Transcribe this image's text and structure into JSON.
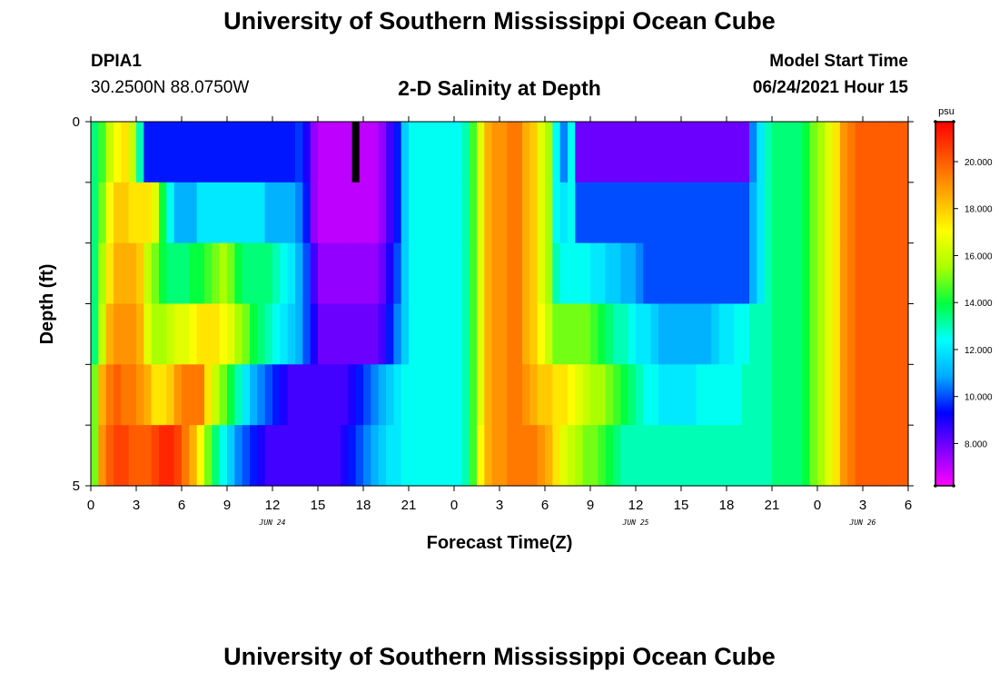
{
  "header": {
    "title": "University of Southern Mississippi Ocean Cube",
    "station_id": "DPIA1",
    "station_coords": "30.2500N  88.0750W",
    "subtitle": "2-D Salinity at Depth",
    "model_start_label": "Model Start Time",
    "model_start_value": "06/24/2021 Hour 15"
  },
  "footer": {
    "title": "University of Southern Mississippi Ocean Cube"
  },
  "chart_data": {
    "type": "heatmap",
    "title": "2-D Salinity at Depth",
    "xlabel": "Forecast Time(Z)",
    "ylabel": "Depth (ft)",
    "x_hours": [
      0,
      0.5,
      1,
      1.5,
      2,
      2.5,
      3,
      3.5,
      4,
      4.5,
      5,
      5.5,
      6,
      6.5,
      7,
      7.5,
      8,
      8.5,
      9,
      9.5,
      10,
      10.5,
      11,
      11.5,
      12,
      12.5,
      13,
      13.5,
      14,
      14.5,
      15,
      15.5,
      16,
      16.5,
      17,
      17.5,
      18,
      18.5,
      19,
      19.5,
      20,
      20.5,
      21,
      21.5,
      22,
      22.5,
      23,
      23.5,
      24,
      24.5,
      25,
      25.5,
      26,
      26.5,
      27,
      27.5,
      28,
      28.5,
      29,
      29.5,
      30,
      30.5,
      31,
      31.5,
      32,
      32.5,
      33,
      33.5,
      34,
      34.5,
      35,
      35.5,
      36,
      36.5,
      37,
      37.5,
      38,
      38.5,
      39,
      39.5,
      40,
      40.5,
      41,
      41.5,
      42,
      42.5,
      43,
      43.5,
      44,
      44.5,
      45,
      45.5,
      46,
      46.5,
      47,
      47.5,
      48,
      48.5,
      49,
      49.5,
      50,
      50.5,
      51,
      51.5,
      52,
      52.5,
      53,
      53.5,
      54
    ],
    "depth_layers_ft": [
      0,
      1,
      2,
      3,
      4,
      5
    ],
    "salinity_psu": [
      [
        13.5,
        14.5,
        16.0,
        17.0,
        17.5,
        16.0,
        13.0,
        9.5,
        9.5,
        9.5,
        9.5,
        9.5,
        9.5,
        9.5,
        9.5,
        9.5,
        9.5,
        9.5,
        9.5,
        9.5,
        9.5,
        9.5,
        9.5,
        9.5,
        9.5,
        9.5,
        9.5,
        9.8,
        9.0,
        7.5,
        7.0,
        7.0,
        7.0,
        7.0,
        7.0,
        7.0,
        7.0,
        7.0,
        7.5,
        8.5,
        9.5,
        11.5,
        12.5,
        12.5,
        12.5,
        12.5,
        12.5,
        12.5,
        12.5,
        13.0,
        14.5,
        16.5,
        18.5,
        19.0,
        19.0,
        19.5,
        19.5,
        18.5,
        18.0,
        16.5,
        15.5,
        12.5,
        10.5,
        12.5,
        8.0,
        8.0,
        8.0,
        8.0,
        8.0,
        8.0,
        8.0,
        8.0,
        8.0,
        8.0,
        8.0,
        8.0,
        8.0,
        8.0,
        8.0,
        8.0,
        8.0,
        8.0,
        8.0,
        8.0,
        8.0,
        8.0,
        8.0,
        10.5,
        12.0,
        13.0,
        13.5,
        13.5,
        13.5,
        13.5,
        14.0,
        15.0,
        15.5,
        16.5,
        17.5,
        19.0,
        19.5,
        20.0,
        20.0,
        20.0,
        20.0,
        20.0,
        20.0,
        20.0
      ],
      [
        13.5,
        15.0,
        17.0,
        18.0,
        18.0,
        17.5,
        17.5,
        17.5,
        16.5,
        14.0,
        12.5,
        11.0,
        11.0,
        11.0,
        12.0,
        12.0,
        12.0,
        12.0,
        12.0,
        12.0,
        12.0,
        12.0,
        12.0,
        11.0,
        11.0,
        11.0,
        11.0,
        10.5,
        9.5,
        7.5,
        7.0,
        7.0,
        7.0,
        7.0,
        7.0,
        7.0,
        7.0,
        7.0,
        7.5,
        8.5,
        9.5,
        11.5,
        12.5,
        12.5,
        12.5,
        12.5,
        12.5,
        12.5,
        12.5,
        13.0,
        14.5,
        16.5,
        18.5,
        19.0,
        19.0,
        19.5,
        19.5,
        18.5,
        18.0,
        16.5,
        15.5,
        12.5,
        12.0,
        12.5,
        10.0,
        10.0,
        10.0,
        10.0,
        10.0,
        10.0,
        10.0,
        10.0,
        10.0,
        10.0,
        10.0,
        10.0,
        10.0,
        10.0,
        10.0,
        10.0,
        10.0,
        10.0,
        10.0,
        10.0,
        10.0,
        10.0,
        10.0,
        11.0,
        12.0,
        13.0,
        13.5,
        13.5,
        13.5,
        13.5,
        14.0,
        15.0,
        15.5,
        16.5,
        17.5,
        19.0,
        19.5,
        20.0,
        20.0,
        20.0,
        20.0,
        20.0,
        20.0,
        20.0
      ],
      [
        13.5,
        15.5,
        17.5,
        18.5,
        18.5,
        18.5,
        18.0,
        16.0,
        15.0,
        14.0,
        13.5,
        13.5,
        13.5,
        14.0,
        14.0,
        14.5,
        15.0,
        15.5,
        15.0,
        14.0,
        13.5,
        13.5,
        13.5,
        13.5,
        13.0,
        12.5,
        12.0,
        11.0,
        10.0,
        8.5,
        7.5,
        7.5,
        7.5,
        7.5,
        7.5,
        7.5,
        7.5,
        7.5,
        8.0,
        9.0,
        10.0,
        11.5,
        12.5,
        12.5,
        12.5,
        12.5,
        12.5,
        12.5,
        12.5,
        13.0,
        14.5,
        16.5,
        18.5,
        19.0,
        19.0,
        19.5,
        19.5,
        18.5,
        18.0,
        16.5,
        15.5,
        13.0,
        12.5,
        12.5,
        12.5,
        12.5,
        12.0,
        12.0,
        11.5,
        11.5,
        11.0,
        11.0,
        10.5,
        10.0,
        10.0,
        10.0,
        10.0,
        10.0,
        10.0,
        10.0,
        10.0,
        10.0,
        10.0,
        10.0,
        10.0,
        10.0,
        10.0,
        11.0,
        12.0,
        13.0,
        13.5,
        13.5,
        13.5,
        13.5,
        14.0,
        15.0,
        15.5,
        16.5,
        17.5,
        19.0,
        19.5,
        20.0,
        20.0,
        20.0,
        20.0,
        20.0,
        20.0,
        20.0
      ],
      [
        13.5,
        16.0,
        18.5,
        19.0,
        19.0,
        19.0,
        18.5,
        16.5,
        15.5,
        15.5,
        16.0,
        16.5,
        16.5,
        17.0,
        17.5,
        17.5,
        17.5,
        17.0,
        16.5,
        15.5,
        15.0,
        14.0,
        13.5,
        13.0,
        12.5,
        12.0,
        11.5,
        11.0,
        10.0,
        9.0,
        8.0,
        8.0,
        8.0,
        8.0,
        8.0,
        8.0,
        8.0,
        8.0,
        8.5,
        9.5,
        10.5,
        11.5,
        12.5,
        12.5,
        12.5,
        12.5,
        12.5,
        12.5,
        12.5,
        13.0,
        14.5,
        16.5,
        18.5,
        19.0,
        19.0,
        19.5,
        19.5,
        18.5,
        18.0,
        17.0,
        16.0,
        15.0,
        15.0,
        15.0,
        15.0,
        15.0,
        14.5,
        14.0,
        13.5,
        13.0,
        13.0,
        12.5,
        12.0,
        12.0,
        11.5,
        11.0,
        11.0,
        11.0,
        11.0,
        11.0,
        11.0,
        11.0,
        11.5,
        12.0,
        12.0,
        12.5,
        12.5,
        13.0,
        13.0,
        13.0,
        13.5,
        13.5,
        13.5,
        13.5,
        14.0,
        15.0,
        15.5,
        16.5,
        17.5,
        19.0,
        19.5,
        20.0,
        20.0,
        20.0,
        20.0,
        20.0,
        20.0,
        20.0
      ],
      [
        15.0,
        18.5,
        19.5,
        20.0,
        19.5,
        19.5,
        19.0,
        18.5,
        17.5,
        17.5,
        18.0,
        19.0,
        19.5,
        19.5,
        19.5,
        17.5,
        16.0,
        15.0,
        14.0,
        13.0,
        12.0,
        11.0,
        10.5,
        10.0,
        9.5,
        9.0,
        8.5,
        8.5,
        8.5,
        8.5,
        8.5,
        8.5,
        8.5,
        8.5,
        9.0,
        9.5,
        10.0,
        10.5,
        11.0,
        11.5,
        12.0,
        12.5,
        12.5,
        12.5,
        12.5,
        12.5,
        12.5,
        12.5,
        12.5,
        13.0,
        14.5,
        16.5,
        18.5,
        19.0,
        19.0,
        19.5,
        19.5,
        19.0,
        18.5,
        18.0,
        18.0,
        17.5,
        17.5,
        17.0,
        16.5,
        16.0,
        15.5,
        15.5,
        15.0,
        14.5,
        14.0,
        13.5,
        13.0,
        12.5,
        12.5,
        12.0,
        12.0,
        12.0,
        12.0,
        12.0,
        12.5,
        12.5,
        12.5,
        12.5,
        12.5,
        12.5,
        13.0,
        13.0,
        13.0,
        13.0,
        13.5,
        13.5,
        13.5,
        13.5,
        14.0,
        15.0,
        15.5,
        16.5,
        17.5,
        19.0,
        19.5,
        20.0,
        20.0,
        20.0,
        20.0,
        20.0,
        20.0,
        20.0
      ],
      [
        15.0,
        19.0,
        20.0,
        20.5,
        20.5,
        20.0,
        20.0,
        20.0,
        20.5,
        21.0,
        21.0,
        20.5,
        19.5,
        18.5,
        17.0,
        15.0,
        13.5,
        12.5,
        11.5,
        10.5,
        10.0,
        9.5,
        9.0,
        8.5,
        8.5,
        8.5,
        8.5,
        8.5,
        8.5,
        8.5,
        8.5,
        8.5,
        8.5,
        9.0,
        9.5,
        10.0,
        10.5,
        11.0,
        11.5,
        12.0,
        12.0,
        12.5,
        12.5,
        12.5,
        12.5,
        12.5,
        12.5,
        12.5,
        12.5,
        13.0,
        14.5,
        17.0,
        18.5,
        19.0,
        19.0,
        19.5,
        19.5,
        19.5,
        19.5,
        19.0,
        18.5,
        17.5,
        16.5,
        16.0,
        15.5,
        15.0,
        15.0,
        14.5,
        14.0,
        13.5,
        13.0,
        13.0,
        13.0,
        13.0,
        13.0,
        13.0,
        13.0,
        13.0,
        13.0,
        13.0,
        13.0,
        13.0,
        13.0,
        13.0,
        13.0,
        13.0,
        13.0,
        13.0,
        13.0,
        13.0,
        13.5,
        13.5,
        13.5,
        13.5,
        14.0,
        15.0,
        15.5,
        16.5,
        17.5,
        19.0,
        19.5,
        20.0,
        20.0,
        20.0,
        20.0,
        20.0,
        20.0,
        20.0
      ]
    ],
    "x_ticks": [
      "0",
      "3",
      "6",
      "9",
      "12",
      "15",
      "18",
      "21",
      "0",
      "3",
      "6",
      "9",
      "12",
      "15",
      "18",
      "21",
      "0",
      "3",
      "6"
    ],
    "x_tick_hours": [
      0,
      3,
      6,
      9,
      12,
      15,
      18,
      21,
      24,
      27,
      30,
      33,
      36,
      39,
      42,
      45,
      48,
      51,
      54
    ],
    "date_labels": [
      {
        "text": "JUN 24",
        "hour": 12
      },
      {
        "text": "JUN 25",
        "hour": 36
      },
      {
        "text": "JUN 26",
        "hour": 51
      }
    ],
    "y_ticks": [
      "0",
      "5"
    ],
    "ylim": [
      0,
      5
    ],
    "xlim": [
      0,
      54
    ],
    "current_time_marker_hour": 17.5,
    "colorbar": {
      "unit_label": "psu",
      "range": [
        6.2,
        21.7
      ],
      "ticks": [
        "8.000",
        "10.000",
        "12.000",
        "14.000",
        "16.000",
        "18.000",
        "20.000"
      ],
      "tick_values": [
        8,
        10,
        12,
        14,
        16,
        18,
        20
      ],
      "colors": [
        "#ff00ff",
        "#8000ff",
        "#0000ff",
        "#00aaff",
        "#00ffff",
        "#00ff40",
        "#aaff00",
        "#ffff00",
        "#ffaa00",
        "#ff5500",
        "#ff0000"
      ]
    },
    "grid": false
  }
}
